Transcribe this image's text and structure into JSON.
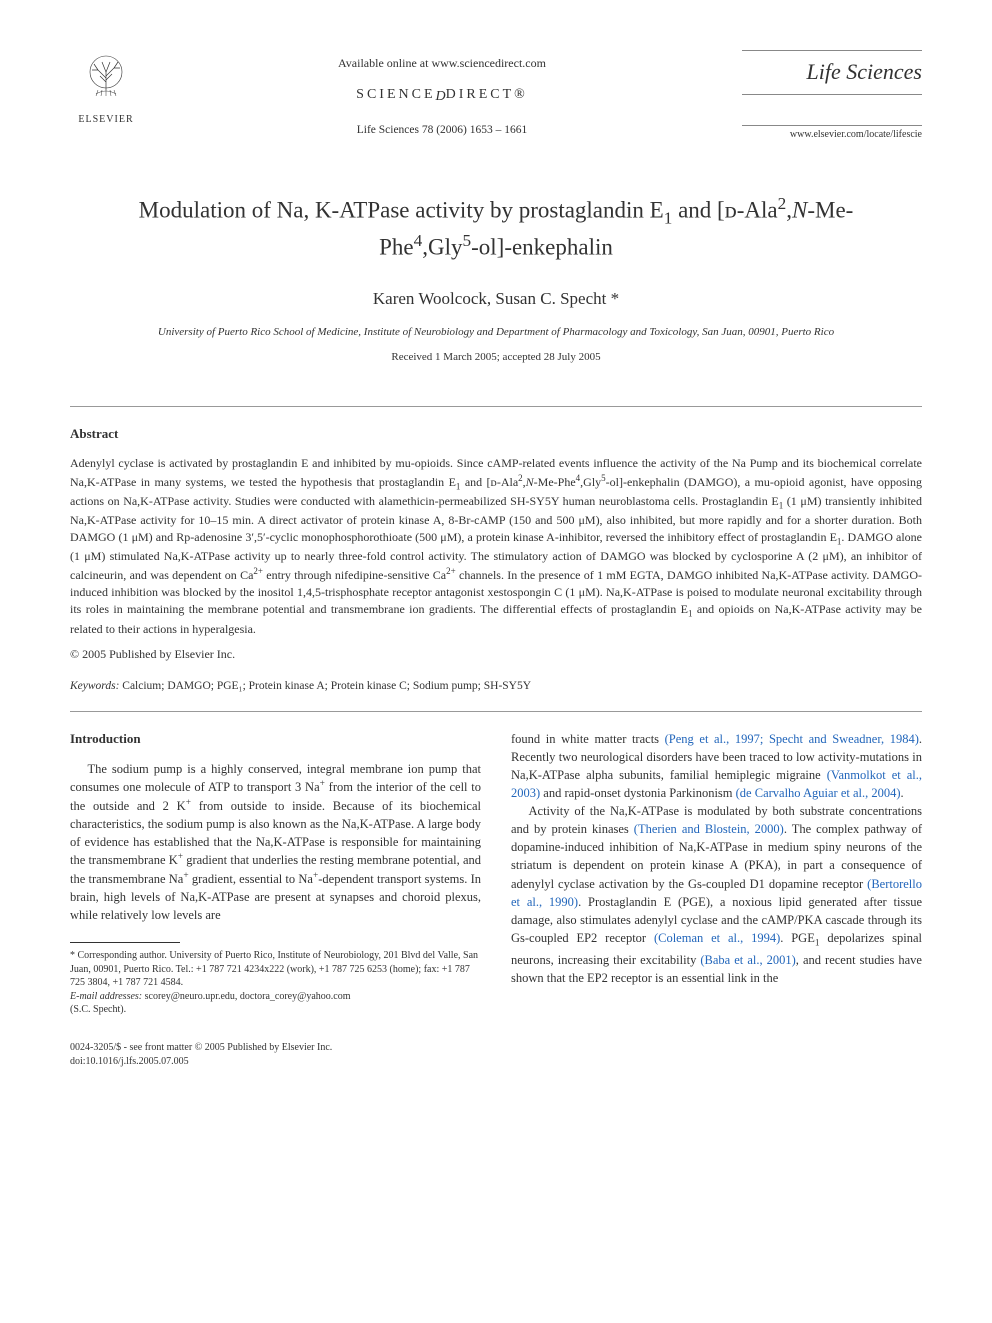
{
  "header": {
    "available_online": "Available online at www.sciencedirect.com",
    "science_direct_pre": "SCIENCE",
    "science_direct_post": "DIRECT®",
    "citation": "Life Sciences 78 (2006) 1653 – 1661",
    "elsevier": "ELSEVIER",
    "journal_name": "Life Sciences",
    "journal_url": "www.elsevier.com/locate/lifescie"
  },
  "title_html": "Modulation of Na, K-ATPase activity by prostaglandin E<sub>1</sub> and [ᴅ-Ala<sup>2</sup>,<i>N</i>-Me-Phe<sup>4</sup>,Gly<sup>5</sup>-ol]-enkephalin",
  "authors_html": "Karen Woolcock, Susan C. Specht *",
  "affiliation": "University of Puerto Rico School of Medicine, Institute of Neurobiology and Department of Pharmacology and Toxicology, San Juan, 00901, Puerto Rico",
  "dates": "Received 1 March 2005; accepted 28 July 2005",
  "abstract": {
    "heading": "Abstract",
    "text_html": "Adenylyl cyclase is activated by prostaglandin E and inhibited by mu-opioids. Since cAMP-related events influence the activity of the Na Pump and its biochemical correlate Na,K-ATPase in many systems, we tested the hypothesis that prostaglandin E<sub>1</sub> and [ᴅ-Ala<sup>2</sup>,<i>N</i>-Me-Phe<sup>4</sup>,Gly<sup>5</sup>-ol]-enkephalin (DAMGO), a mu-opioid agonist, have opposing actions on Na,K-ATPase activity. Studies were conducted with alamethicin-permeabilized SH-SY5Y human neuroblastoma cells. Prostaglandin E<sub>1</sub> (1 μM) transiently inhibited Na,K-ATPase activity for 10–15 min. A direct activator of protein kinase A, 8-Br-cAMP (150 and 500 μM), also inhibited, but more rapidly and for a shorter duration. Both DAMGO (1 μM) and Rp-adenosine 3′,5′-cyclic monophosphorothioate (500 μM), a protein kinase A-inhibitor, reversed the inhibitory effect of prostaglandin E<sub>1</sub>. DAMGO alone (1 μM) stimulated Na,K-ATPase activity up to nearly three-fold control activity. The stimulatory action of DAMGO was blocked by cyclosporine A (2 μM), an inhibitor of calcineurin, and was dependent on Ca<sup>2+</sup> entry through nifedipine-sensitive Ca<sup>2+</sup> channels. In the presence of 1 mM EGTA, DAMGO inhibited Na,K-ATPase activity. DAMGO-induced inhibition was blocked by the inositol 1,4,5-trisphosphate receptor antagonist xestospongin C (1 μM). Na,K-ATPase is poised to modulate neuronal excitability through its roles in maintaining the membrane potential and transmembrane ion gradients. The differential effects of prostaglandin E<sub>1</sub> and opioids on Na,K-ATPase activity may be related to their actions in hyperalgesia.",
    "copyright": "© 2005 Published by Elsevier Inc."
  },
  "keywords": {
    "label": "Keywords:",
    "list": "Calcium; DAMGO; PGE₁; Protein kinase A; Protein kinase C; Sodium pump; SH-SY5Y"
  },
  "intro": {
    "heading": "Introduction",
    "left_col_html": "The sodium pump is a highly conserved, integral membrane ion pump that consumes one molecule of ATP to transport 3 Na<sup>+</sup> from the interior of the cell to the outside and 2 K<sup>+</sup> from outside to inside. Because of its biochemical characteristics, the sodium pump is also known as the Na,K-ATPase. A large body of evidence has established that the Na,K-ATPase is responsible for maintaining the transmembrane K<sup>+</sup> gradient that underlies the resting membrane potential, and the transmembrane Na<sup>+</sup> gradient, essential to Na<sup>+</sup>-dependent transport systems. In brain, high levels of Na,K-ATPase are present at synapses and choroid plexus, while relatively low levels are",
    "right_col_p1_html": "found in white matter tracts <span class=\"ref-link\">(Peng et al., 1997; Specht and Sweadner, 1984)</span>. Recently two neurological disorders have been traced to low activity-mutations in Na,K-ATPase alpha subunits, familial hemiplegic migraine <span class=\"ref-link\">(Vanmolkot et al., 2003)</span> and rapid-onset dystonia Parkinonism <span class=\"ref-link\">(de Carvalho Aguiar et al., 2004)</span>.",
    "right_col_p2_html": "Activity of the Na,K-ATPase is modulated by both substrate concentrations and by protein kinases <span class=\"ref-link\">(Therien and Blostein, 2000)</span>. The complex pathway of dopamine-induced inhibition of Na,K-ATPase in medium spiny neurons of the striatum is dependent on protein kinase A (PKA), in part a consequence of adenylyl cyclase activation by the Gs-coupled D1 dopamine receptor <span class=\"ref-link\">(Bertorello et al., 1990)</span>. Prostaglandin E (PGE), a noxious lipid generated after tissue damage, also stimulates adenylyl cyclase and the cAMP/PKA cascade through its Gs-coupled EP2 receptor <span class=\"ref-link\">(Coleman et al., 1994)</span>. PGE<sub>1</sub> depolarizes spinal neurons, increasing their excitability <span class=\"ref-link\">(Baba et al., 2001)</span>, and recent studies have shown that the EP2 receptor is an essential link in the"
  },
  "footnote": {
    "corr": "* Corresponding author. University of Puerto Rico, Institute of Neurobiology, 201 Blvd del Valle, San Juan, 00901, Puerto Rico. Tel.: +1 787 721 4234x222 (work), +1 787 725 6253 (home); fax: +1 787 725 3804, +1 787 721 4584.",
    "email_label": "E-mail addresses:",
    "emails": "scorey@neuro.upr.edu, doctora_corey@yahoo.com",
    "email_attr": "(S.C. Specht)."
  },
  "footer": {
    "line1": "0024-3205/$ - see front matter © 2005 Published by Elsevier Inc.",
    "line2": "doi:10.1016/j.lfs.2005.07.005"
  },
  "colors": {
    "text": "#323232",
    "link": "#2266bb",
    "rule": "#999999",
    "background": "#ffffff"
  },
  "typography": {
    "body_family": "Times New Roman",
    "title_size_pt": 17,
    "author_size_pt": 13,
    "abstract_size_pt": 9,
    "body_size_pt": 9.5
  }
}
